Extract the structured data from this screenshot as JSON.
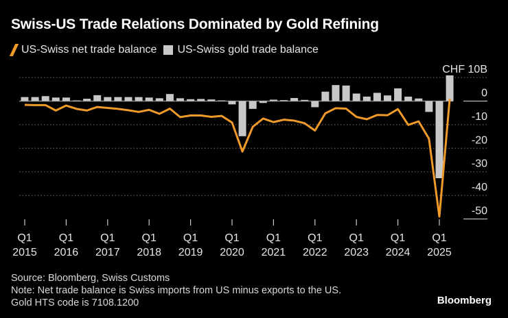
{
  "chart_data": {
    "type": "bar+line",
    "title": "Swiss-US Trade Relations Dominated by Gold Refining",
    "unit_label": "CHF 10B",
    "ylim": [
      -50,
      10
    ],
    "yticks": [
      10,
      0,
      -10,
      -20,
      -30,
      -40,
      -50
    ],
    "ytick_labels": [
      "CHF 10B",
      "0",
      "-10",
      "-20",
      "-30",
      "-40",
      "-50"
    ],
    "grid": true,
    "x_start": "Q1 2015",
    "x_ticks": [
      {
        "q": "Q1",
        "year": "2015"
      },
      {
        "q": "Q1",
        "year": "2016"
      },
      {
        "q": "Q1",
        "year": "2017"
      },
      {
        "q": "Q1",
        "year": "2018"
      },
      {
        "q": "Q1",
        "year": "2019"
      },
      {
        "q": "Q1",
        "year": "2020"
      },
      {
        "q": "Q1",
        "year": "2021"
      },
      {
        "q": "Q1",
        "year": "2022"
      },
      {
        "q": "Q1",
        "year": "2023"
      },
      {
        "q": "Q1",
        "year": "2024"
      },
      {
        "q": "Q1",
        "year": "2025"
      }
    ],
    "series": [
      {
        "name": "US-Swiss net trade balance",
        "kind": "line",
        "color": "#f09a2a",
        "values": [
          -1.6,
          -1.7,
          -1.7,
          -4.0,
          -1.9,
          -3.3,
          -4.0,
          -2.5,
          -2.9,
          -3.3,
          -3.9,
          -4.6,
          -3.7,
          -5.4,
          -3.2,
          -6.8,
          -6.1,
          -6.1,
          -6.7,
          -6.3,
          -9.1,
          -21.4,
          -10.9,
          -7.4,
          -8.9,
          -7.9,
          -8.3,
          -9.4,
          -12.5,
          -5.2,
          -3.0,
          -3.2,
          -6.7,
          -7.7,
          -5.9,
          -6.0,
          -3.4,
          -10.1,
          -8.6,
          -16.0,
          -49.0,
          1.0
        ]
      },
      {
        "name": "US-Swiss gold trade balance",
        "kind": "bar",
        "color": "#c8c8c8",
        "values": [
          1.7,
          1.7,
          2.1,
          1.5,
          1.5,
          0.3,
          1.0,
          2.5,
          1.7,
          1.7,
          1.7,
          1.7,
          1.5,
          1.2,
          3.0,
          1.2,
          0.8,
          0.9,
          0.7,
          0.3,
          -1.4,
          -14.9,
          -3.3,
          -0.8,
          0.6,
          0.4,
          1.3,
          0.5,
          -2.6,
          4.0,
          6.8,
          6.6,
          3.2,
          1.9,
          3.5,
          2.4,
          5.4,
          1.9,
          1.1,
          -4.6,
          -32.7,
          10.9
        ]
      }
    ]
  },
  "footer": {
    "source": "Source: Bloomberg, Swiss Customs",
    "note1": "Note: Net trade balance is Swiss imports from US minus exports to the US.",
    "note2": "Gold HTS code is 7108.1200",
    "brand": "Bloomberg"
  }
}
